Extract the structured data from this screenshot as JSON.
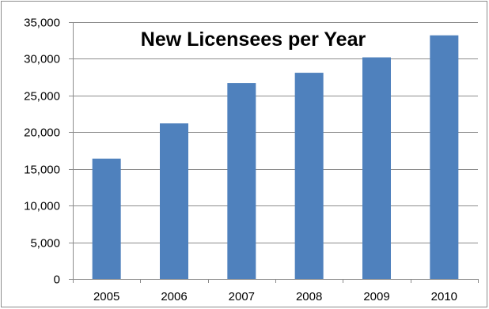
{
  "chart_data": {
    "type": "bar",
    "title": "New Licensees per Year",
    "xlabel": "",
    "ylabel": "",
    "categories": [
      "2005",
      "2006",
      "2007",
      "2008",
      "2009",
      "2010"
    ],
    "values": [
      16400,
      21200,
      26700,
      28100,
      30200,
      33200
    ],
    "ylim": [
      0,
      35000
    ],
    "yticks": [
      0,
      5000,
      10000,
      15000,
      20000,
      25000,
      30000,
      35000
    ],
    "ytick_labels": [
      "0",
      "5,000",
      "10,000",
      "15,000",
      "20,000",
      "25,000",
      "30,000",
      "35,000"
    ],
    "grid": true,
    "legend": "none",
    "bar_color": "#4f81bd",
    "grid_color": "#8c8c8c"
  }
}
